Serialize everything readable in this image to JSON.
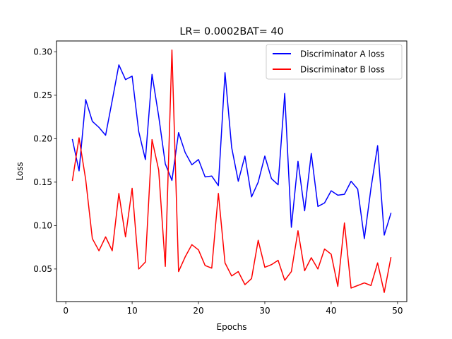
{
  "chart_data": {
    "type": "line",
    "title": "LR= 0.0002BAT= 40",
    "xlabel": "Epochs",
    "ylabel": "Loss",
    "xlim": [
      -1.4,
      51.4
    ],
    "ylim": [
      0.0125,
      0.3125
    ],
    "xticks": [
      0,
      10,
      20,
      30,
      40,
      50
    ],
    "yticks": [
      0.05,
      0.1,
      0.15,
      0.2,
      0.25,
      0.3
    ],
    "ytick_labels": [
      "0.05",
      "0.10",
      "0.15",
      "0.20",
      "0.25",
      "0.30"
    ],
    "grid": false,
    "legend_position": "upper right",
    "x": [
      1,
      2,
      3,
      4,
      5,
      6,
      7,
      8,
      9,
      10,
      11,
      12,
      13,
      14,
      15,
      16,
      17,
      18,
      19,
      20,
      21,
      22,
      23,
      24,
      25,
      26,
      27,
      28,
      29,
      30,
      31,
      32,
      33,
      34,
      35,
      36,
      37,
      38,
      39,
      40,
      41,
      42,
      43,
      44,
      45,
      46,
      47,
      48,
      49
    ],
    "series": [
      {
        "name": "Discriminator A loss",
        "color": "#0000ff",
        "values": [
          0.199,
          0.163,
          0.245,
          0.22,
          0.213,
          0.204,
          0.244,
          0.285,
          0.268,
          0.272,
          0.208,
          0.176,
          0.274,
          0.226,
          0.171,
          0.152,
          0.207,
          0.184,
          0.17,
          0.176,
          0.156,
          0.157,
          0.146,
          0.276,
          0.19,
          0.151,
          0.18,
          0.133,
          0.15,
          0.18,
          0.154,
          0.147,
          0.252,
          0.098,
          0.174,
          0.117,
          0.183,
          0.122,
          0.126,
          0.14,
          0.135,
          0.136,
          0.151,
          0.142,
          0.085,
          0.143,
          0.192,
          0.089,
          0.114
        ]
      },
      {
        "name": "Discriminator B loss",
        "color": "#ff0000",
        "values": [
          0.152,
          0.201,
          0.153,
          0.085,
          0.071,
          0.087,
          0.071,
          0.137,
          0.087,
          0.143,
          0.05,
          0.058,
          0.199,
          0.164,
          0.053,
          0.302,
          0.047,
          0.064,
          0.078,
          0.072,
          0.054,
          0.051,
          0.137,
          0.057,
          0.042,
          0.047,
          0.032,
          0.039,
          0.083,
          0.052,
          0.055,
          0.06,
          0.037,
          0.047,
          0.094,
          0.048,
          0.063,
          0.05,
          0.073,
          0.067,
          0.03,
          0.103,
          0.028,
          0.031,
          0.034,
          0.031,
          0.057,
          0.023,
          0.063
        ]
      }
    ]
  }
}
